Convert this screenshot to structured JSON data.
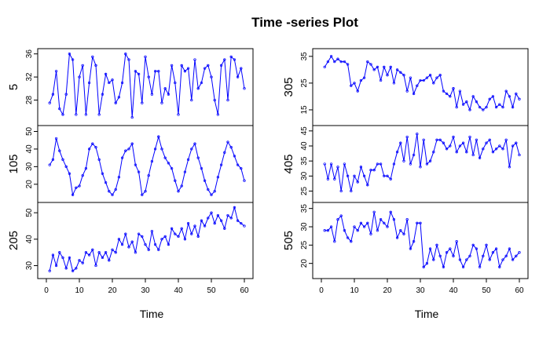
{
  "chart_data": {
    "type": "line",
    "title": "Time -series Plot",
    "xlabel": "Time",
    "x_ticks": [
      0,
      10,
      20,
      30,
      40,
      50,
      60
    ],
    "xlim": [
      0,
      60
    ],
    "line_color": "#0000ff",
    "point_color": "#0000ff",
    "panels": [
      {
        "ylabel": "5",
        "column": 0,
        "row": 0,
        "ylim": [
          24,
          36.5
        ],
        "yticks": [
          28,
          32,
          36
        ],
        "x": [
          1,
          2,
          3,
          4,
          5,
          6,
          7,
          8,
          9,
          10,
          11,
          12,
          13,
          14,
          15,
          16,
          17,
          18,
          19,
          20,
          21,
          22,
          23,
          24,
          25,
          26,
          27,
          28,
          29,
          30,
          31,
          32,
          33,
          34,
          35,
          36,
          37,
          38,
          39,
          40,
          41,
          42,
          43,
          44,
          45,
          46,
          47,
          48,
          49,
          50,
          51,
          52,
          53,
          54,
          55,
          56,
          57,
          58,
          59,
          60
        ],
        "y": [
          27.5,
          29,
          33,
          26.5,
          25.5,
          29,
          36,
          35,
          25.5,
          32,
          34,
          25.5,
          31,
          35.5,
          34,
          25.5,
          29,
          32.5,
          31,
          31.5,
          27.5,
          28.5,
          31,
          36,
          35,
          25,
          33,
          32.5,
          27.5,
          35.5,
          32,
          29,
          33,
          33,
          27.5,
          30,
          29,
          34,
          31,
          25.5,
          34,
          33,
          33.5,
          28,
          35,
          30,
          31,
          33.5,
          34,
          32,
          28,
          25.5,
          34,
          35,
          28,
          35.5,
          35,
          32,
          33.5,
          30
        ]
      },
      {
        "ylabel": "105",
        "column": 0,
        "row": 1,
        "ylim": [
          11,
          52
        ],
        "yticks": [
          20,
          30,
          40,
          50
        ],
        "x": [
          1,
          2,
          3,
          4,
          5,
          6,
          7,
          8,
          9,
          10,
          11,
          12,
          13,
          14,
          15,
          16,
          17,
          18,
          19,
          20,
          21,
          22,
          23,
          24,
          25,
          26,
          27,
          28,
          29,
          30,
          31,
          32,
          33,
          34,
          35,
          36,
          37,
          38,
          39,
          40,
          41,
          42,
          43,
          44,
          45,
          46,
          47,
          48,
          49,
          50,
          51,
          52,
          53,
          54,
          55,
          56,
          57,
          58,
          59,
          60
        ],
        "y": [
          31,
          34,
          46,
          39,
          34,
          30,
          26,
          14,
          18,
          19,
          25,
          29,
          40,
          43,
          41,
          34,
          26,
          21,
          16,
          14,
          17,
          24,
          35,
          39,
          40,
          43,
          31,
          27,
          14,
          16,
          25,
          33,
          40,
          47,
          40,
          35,
          32,
          29,
          22,
          16,
          19,
          27,
          34,
          40,
          43,
          35,
          29,
          22,
          17,
          14,
          16,
          24,
          31,
          38,
          44,
          41,
          36,
          31,
          29,
          22
        ]
      },
      {
        "ylabel": "205",
        "column": 0,
        "row": 2,
        "ylim": [
          26,
          53
        ],
        "yticks": [
          30,
          40,
          50
        ],
        "x": [
          1,
          2,
          3,
          4,
          5,
          6,
          7,
          8,
          9,
          10,
          11,
          12,
          13,
          14,
          15,
          16,
          17,
          18,
          19,
          20,
          21,
          22,
          23,
          24,
          25,
          26,
          27,
          28,
          29,
          30,
          31,
          32,
          33,
          34,
          35,
          36,
          37,
          38,
          39,
          40,
          41,
          42,
          43,
          44,
          45,
          46,
          47,
          48,
          49,
          50,
          51,
          52,
          53,
          54,
          55,
          56,
          57,
          58,
          59,
          60
        ],
        "y": [
          28,
          34,
          30,
          35,
          33,
          29,
          33,
          28,
          29,
          32,
          31,
          35,
          34,
          36,
          30,
          35,
          33,
          35,
          32,
          36,
          35,
          40,
          38,
          42,
          37,
          39,
          35,
          42,
          41,
          38,
          36,
          43,
          38,
          36,
          40,
          41,
          38,
          44,
          42,
          41,
          44,
          40,
          46,
          42,
          45,
          41,
          47,
          45,
          48,
          50,
          46,
          49,
          47,
          44,
          49,
          48,
          52,
          47,
          46,
          45
        ]
      },
      {
        "ylabel": "305",
        "column": 1,
        "row": 0,
        "ylim": [
          10,
          37
        ],
        "yticks": [
          15,
          25,
          35
        ],
        "x": [
          1,
          2,
          3,
          4,
          5,
          6,
          7,
          8,
          9,
          10,
          11,
          12,
          13,
          14,
          15,
          16,
          17,
          18,
          19,
          20,
          21,
          22,
          23,
          24,
          25,
          26,
          27,
          28,
          29,
          30,
          31,
          32,
          33,
          34,
          35,
          36,
          37,
          38,
          39,
          40,
          41,
          42,
          43,
          44,
          45,
          46,
          47,
          48,
          49,
          50,
          51,
          52,
          53,
          54,
          55,
          56,
          57,
          58,
          59,
          60
        ],
        "y": [
          31,
          33,
          35,
          33,
          34,
          33,
          33,
          32,
          24,
          25,
          22,
          26,
          27,
          33,
          32,
          30,
          31,
          26,
          31,
          28,
          31,
          25,
          30,
          29,
          28,
          22,
          27,
          21,
          24,
          26,
          26,
          27,
          28,
          25,
          27,
          28,
          22,
          21,
          20,
          23,
          16,
          22,
          17,
          18,
          15,
          20,
          18,
          16,
          15,
          16,
          19,
          20,
          16,
          17,
          16,
          22,
          20,
          16,
          21,
          19
        ]
      },
      {
        "ylabel": "405",
        "column": 1,
        "row": 1,
        "ylim": [
          22,
          46
        ],
        "yticks": [
          25,
          30,
          35,
          40,
          45
        ],
        "x": [
          1,
          2,
          3,
          4,
          5,
          6,
          7,
          8,
          9,
          10,
          11,
          12,
          13,
          14,
          15,
          16,
          17,
          18,
          19,
          20,
          21,
          22,
          23,
          24,
          25,
          26,
          27,
          28,
          29,
          30,
          31,
          32,
          33,
          34,
          35,
          36,
          37,
          38,
          39,
          40,
          41,
          42,
          43,
          44,
          45,
          46,
          47,
          48,
          49,
          50,
          51,
          52,
          53,
          54,
          55,
          56,
          57,
          58,
          59,
          60
        ],
        "y": [
          34,
          29,
          34,
          29,
          33,
          25,
          34,
          30,
          25,
          30,
          28,
          33,
          30,
          27,
          32,
          32,
          34,
          34,
          30,
          30,
          29,
          34,
          38,
          41,
          35,
          43,
          34,
          37,
          44,
          33,
          42,
          34,
          35,
          38,
          42,
          42,
          41,
          39,
          40,
          43,
          38,
          40,
          41,
          38,
          43,
          37,
          42,
          36,
          39,
          41,
          42,
          38,
          39,
          40,
          39,
          42,
          33,
          40,
          41,
          37
        ]
      },
      {
        "ylabel": "505",
        "column": 1,
        "row": 2,
        "ylim": [
          16.5,
          36
        ],
        "yticks": [
          20,
          25,
          30,
          35
        ],
        "x": [
          1,
          2,
          3,
          4,
          5,
          6,
          7,
          8,
          9,
          10,
          11,
          12,
          13,
          14,
          15,
          16,
          17,
          18,
          19,
          20,
          21,
          22,
          23,
          24,
          25,
          26,
          27,
          28,
          29,
          30,
          31,
          32,
          33,
          34,
          35,
          36,
          37,
          38,
          39,
          40,
          41,
          42,
          43,
          44,
          45,
          46,
          47,
          48,
          49,
          50,
          51,
          52,
          53,
          54,
          55,
          56,
          57,
          58,
          59,
          60
        ],
        "y": [
          29,
          29,
          30,
          26,
          32,
          33,
          29,
          27,
          26,
          30,
          29,
          31,
          30,
          31,
          28,
          34,
          29,
          32,
          31,
          30,
          34,
          32,
          27,
          29,
          28,
          32,
          24,
          26,
          31,
          31,
          19,
          20,
          24,
          21,
          25,
          22,
          19,
          23,
          24,
          22,
          26,
          21,
          19,
          21,
          22,
          25,
          24,
          19,
          22,
          25,
          21,
          23,
          24,
          19,
          21,
          22,
          24,
          21,
          22,
          23
        ]
      }
    ]
  }
}
